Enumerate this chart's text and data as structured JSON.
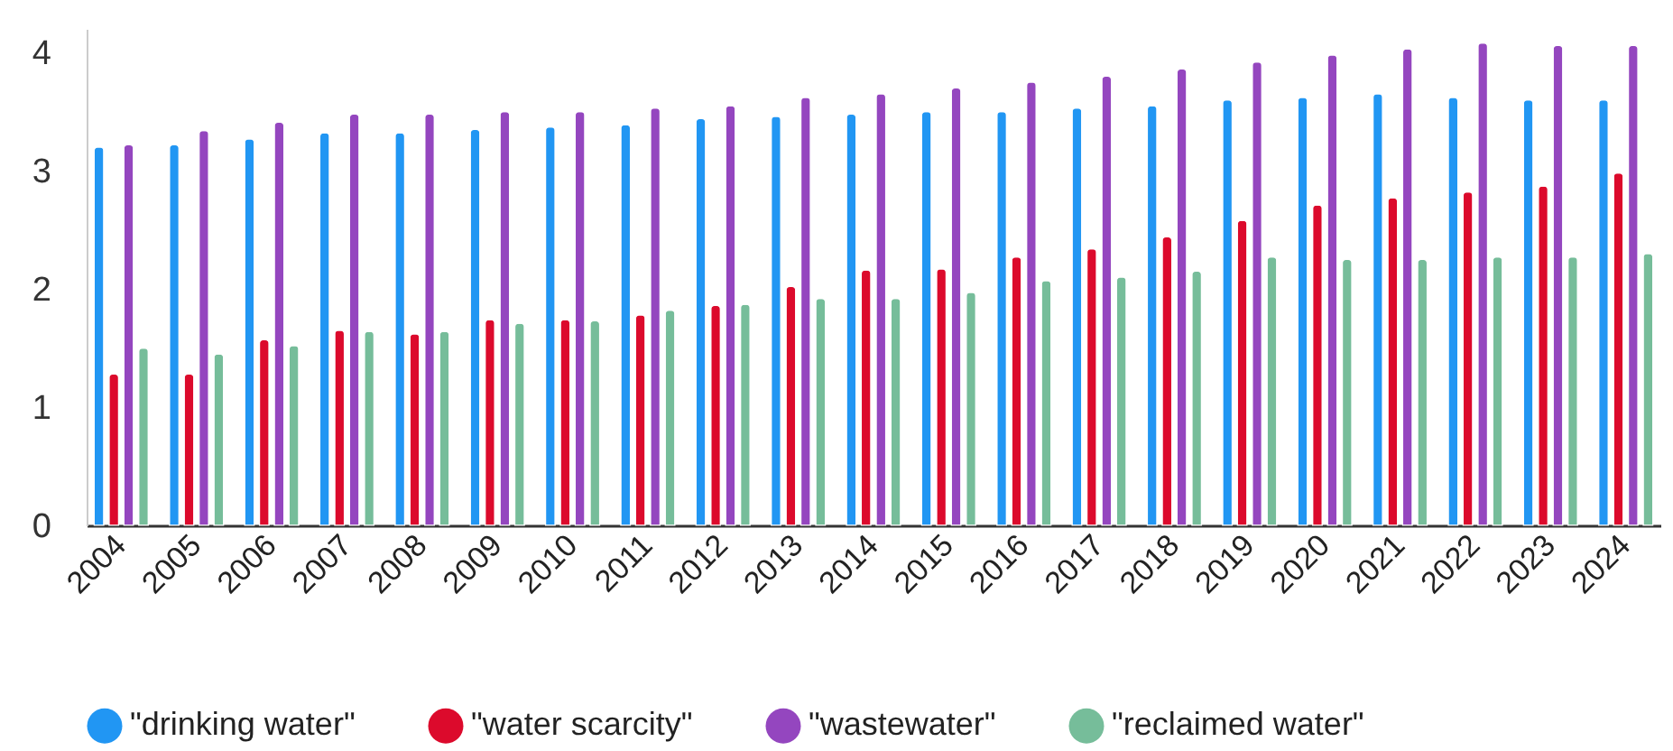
{
  "chart_data": {
    "type": "bar",
    "categories": [
      "2004",
      "2005",
      "2006",
      "2007",
      "2008",
      "2009",
      "2010",
      "2011",
      "2012",
      "2013",
      "2014",
      "2015",
      "2016",
      "2017",
      "2018",
      "2019",
      "2020",
      "2021",
      "2022",
      "2023",
      "2024"
    ],
    "series": [
      {
        "name": "\"drinking water\"",
        "color": "#2196f3",
        "values": [
          3.2,
          3.22,
          3.27,
          3.32,
          3.32,
          3.35,
          3.37,
          3.39,
          3.44,
          3.46,
          3.48,
          3.5,
          3.5,
          3.53,
          3.55,
          3.6,
          3.62,
          3.65,
          3.62,
          3.6,
          3.6
        ]
      },
      {
        "name": "\"water scarcity\"",
        "color": "#dc0a2c",
        "values": [
          1.28,
          1.28,
          1.57,
          1.65,
          1.62,
          1.74,
          1.74,
          1.78,
          1.86,
          2.02,
          2.16,
          2.17,
          2.27,
          2.34,
          2.44,
          2.58,
          2.71,
          2.77,
          2.82,
          2.87,
          2.98
        ]
      },
      {
        "name": "\"wastewater\"",
        "color": "#9446bf",
        "values": [
          3.22,
          3.34,
          3.41,
          3.48,
          3.48,
          3.5,
          3.5,
          3.53,
          3.55,
          3.62,
          3.65,
          3.7,
          3.75,
          3.8,
          3.86,
          3.92,
          3.98,
          4.03,
          4.08,
          4.06,
          4.06
        ]
      },
      {
        "name": "\"reclaimed water\"",
        "color": "#76bd9a",
        "values": [
          1.5,
          1.45,
          1.52,
          1.64,
          1.64,
          1.71,
          1.73,
          1.82,
          1.87,
          1.92,
          1.92,
          1.97,
          2.07,
          2.1,
          2.15,
          2.27,
          2.25,
          2.25,
          2.27,
          2.27,
          2.3
        ]
      }
    ],
    "ylim": [
      0,
      4.2
    ],
    "yticks": [
      0,
      1,
      2,
      3,
      4
    ],
    "grid": false,
    "legend": "bottom"
  }
}
